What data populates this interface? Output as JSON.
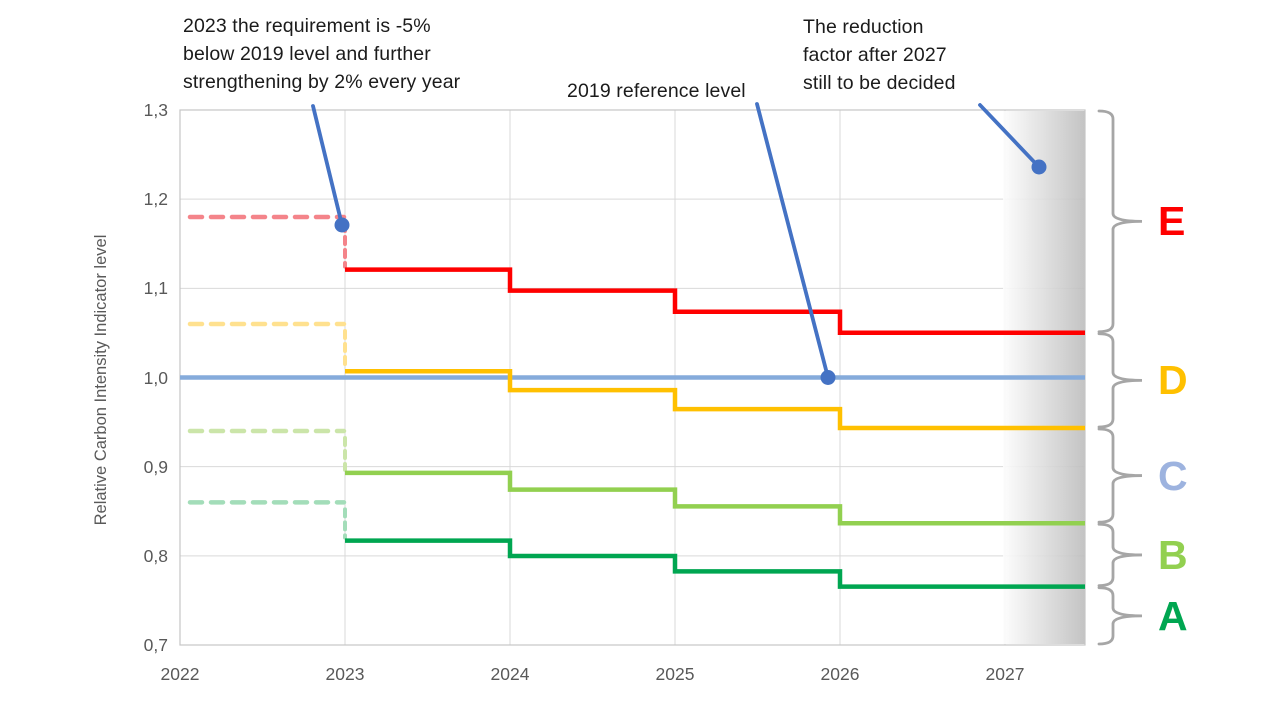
{
  "chart_data": {
    "type": "line",
    "subtype": "step",
    "title": "",
    "ylabel": "Relative Carbon Intensity Indicator level",
    "xlabel": "",
    "ylim": [
      0.7,
      1.3
    ],
    "xlim": [
      2022,
      2027.49
    ],
    "grid": true,
    "y_ticks": [
      {
        "label": "1,3",
        "value": 1.3
      },
      {
        "label": "1,2",
        "value": 1.2
      },
      {
        "label": "1,1",
        "value": 1.1
      },
      {
        "label": "1,0",
        "value": 1.0
      },
      {
        "label": "0,9",
        "value": 0.9
      },
      {
        "label": "0,8",
        "value": 0.8
      },
      {
        "label": "0,7",
        "value": 0.7
      }
    ],
    "x_ticks": [
      {
        "label": "2022",
        "value": 2022
      },
      {
        "label": "2023",
        "value": 2023
      },
      {
        "label": "2024",
        "value": 2024
      },
      {
        "label": "2025",
        "value": 2025
      },
      {
        "label": "2026",
        "value": 2026
      },
      {
        "label": "2027",
        "value": 2027
      }
    ],
    "reference_line": {
      "label": "2019 reference level",
      "value": 1.0,
      "color": "#85ABDB"
    },
    "series": [
      {
        "name": "red-boundary",
        "color": "#FF0000",
        "dash_color": "#F4848A",
        "ref_2019_level": 1.18,
        "steps": [
          {
            "year": 2023,
            "value": 1.121
          },
          {
            "year": 2024,
            "value": 1.0974
          },
          {
            "year": 2025,
            "value": 1.0738
          },
          {
            "year": 2026,
            "value": 1.0502
          }
        ]
      },
      {
        "name": "yellow-boundary",
        "color": "#FFC000",
        "dash_color": "#FFE18F",
        "ref_2019_level": 1.06,
        "steps": [
          {
            "year": 2023,
            "value": 1.007
          },
          {
            "year": 2024,
            "value": 0.9858
          },
          {
            "year": 2025,
            "value": 0.9646
          },
          {
            "year": 2026,
            "value": 0.9434
          }
        ]
      },
      {
        "name": "light-green-boundary",
        "color": "#92D050",
        "dash_color": "#CBE5A9",
        "ref_2019_level": 0.94,
        "steps": [
          {
            "year": 2023,
            "value": 0.893
          },
          {
            "year": 2024,
            "value": 0.8742
          },
          {
            "year": 2025,
            "value": 0.8554
          },
          {
            "year": 2026,
            "value": 0.8366
          }
        ]
      },
      {
        "name": "green-boundary",
        "color": "#00A651",
        "dash_color": "#A3DDB9",
        "ref_2019_level": 0.86,
        "steps": [
          {
            "year": 2023,
            "value": 0.817
          },
          {
            "year": 2024,
            "value": 0.7998
          },
          {
            "year": 2025,
            "value": 0.7826
          },
          {
            "year": 2026,
            "value": 0.7654
          }
        ]
      }
    ],
    "rating_bands": [
      {
        "letter": "E",
        "color": "#FF0000",
        "from": 1.0502,
        "to": 1.3
      },
      {
        "letter": "D",
        "color": "#FFC000",
        "from": 0.9434,
        "to": 1.0502
      },
      {
        "letter": "C",
        "color": "#9DB3DF",
        "from": 0.8366,
        "to": 0.9434
      },
      {
        "letter": "B",
        "color": "#92D050",
        "from": 0.7654,
        "to": 0.8366
      },
      {
        "letter": "A",
        "color": "#00A651",
        "from": 0.7,
        "to": 0.7654
      }
    ],
    "future_region": {
      "from_year": 2027,
      "gradient": [
        "#fdfdfd",
        "#bdbdbd"
      ]
    },
    "brace_color": "#A6A6A6",
    "callout_color": "#4472C4"
  },
  "annotations": {
    "req2023": {
      "text": "2023 the requirement is -5%\nbelow 2019 level and further\nstrengthening by 2% every year"
    },
    "ref2019": {
      "text": "2019 reference level"
    },
    "after2027": {
      "text": "The reduction\nfactor after 2027\nstill to be decided"
    }
  }
}
